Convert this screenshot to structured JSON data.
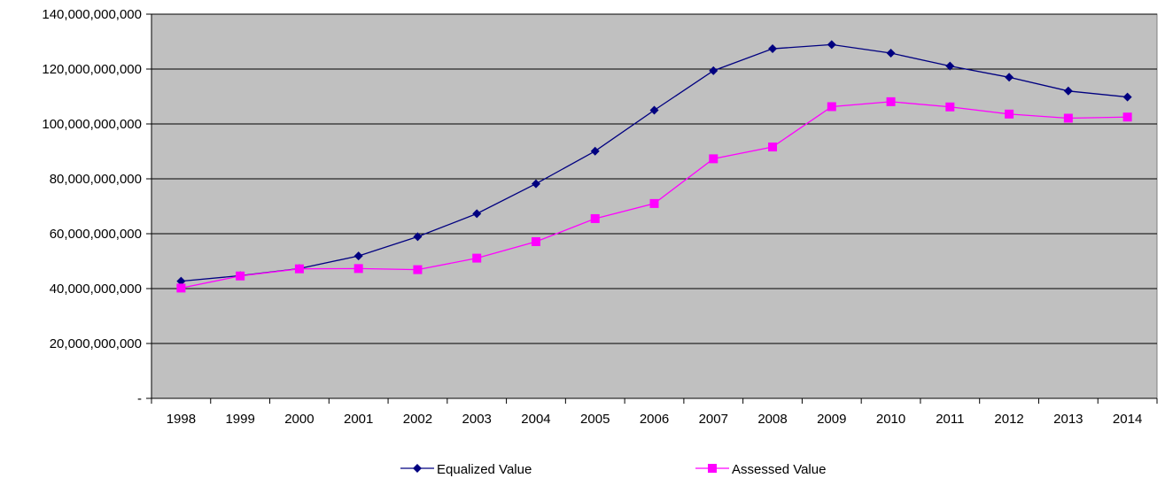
{
  "chart_data": {
    "type": "line",
    "title": "",
    "xlabel": "",
    "ylabel": "",
    "categories": [
      "1998",
      "1999",
      "2000",
      "2001",
      "2002",
      "2003",
      "2004",
      "2005",
      "2006",
      "2007",
      "2008",
      "2009",
      "2010",
      "2011",
      "2012",
      "2013",
      "2014"
    ],
    "ylim": [
      0,
      140000000000
    ],
    "yticks": [
      0,
      20000000000,
      40000000000,
      60000000000,
      80000000000,
      100000000000,
      120000000000,
      140000000000
    ],
    "ytick_labels": [
      "-",
      "20,000,000,000",
      "40,000,000,000",
      "60,000,000,000",
      "80,000,000,000",
      "100,000,000,000",
      "120,000,000,000",
      "140,000,000,000"
    ],
    "grid": true,
    "plot_background": "#c0c0c0",
    "legend_position": "bottom",
    "series": [
      {
        "name": "Equalized Value",
        "color": "#000080",
        "marker": "diamond",
        "values": [
          42700000000,
          44700000000,
          47300000000,
          51900000000,
          58900000000,
          67300000000,
          78200000000,
          90100000000,
          105000000000,
          119400000000,
          127400000000,
          128900000000,
          125800000000,
          121100000000,
          117000000000,
          112000000000,
          109800000000
        ]
      },
      {
        "name": "Assessed Value",
        "color": "#ff00ff",
        "marker": "square",
        "values": [
          40200000000,
          44600000000,
          47200000000,
          47300000000,
          46900000000,
          51100000000,
          57100000000,
          65500000000,
          71000000000,
          87300000000,
          91600000000,
          106300000000,
          108100000000,
          106200000000,
          103600000000,
          102100000000,
          102500000000
        ]
      }
    ]
  }
}
